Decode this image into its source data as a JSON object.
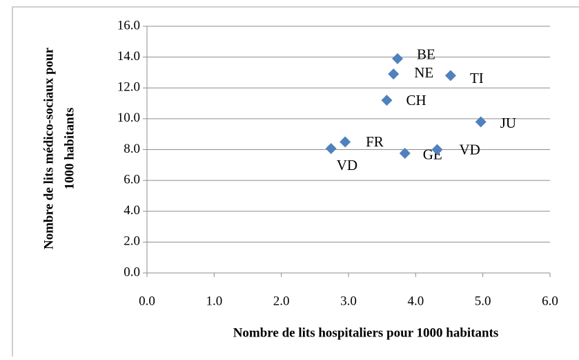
{
  "chart_data": {
    "type": "scatter",
    "xlabel": "Nombre de lits hospitaliers pour 1000 habitants",
    "ylabel": [
      "Nombre de lits médico-sociaux pour",
      "1000 habitants"
    ],
    "series": [
      {
        "color": "#4f81bd",
        "labels": [
          "BE",
          "NE",
          "TI",
          "CH",
          "JU",
          "FR",
          "VD",
          "GE",
          "VD"
        ],
        "x": [
          3.73,
          3.67,
          4.52,
          3.57,
          4.97,
          2.95,
          2.74,
          3.84,
          4.32
        ],
        "values": [
          13.9,
          12.9,
          12.8,
          11.2,
          9.8,
          8.5,
          8.07,
          7.76,
          8.0
        ]
      }
    ],
    "xlim": [
      0,
      6
    ],
    "ylim": [
      0,
      16
    ],
    "xticks": [
      {
        "value": 0,
        "label": "0.0"
      },
      {
        "value": 1,
        "label": "1.0"
      },
      {
        "value": 2,
        "label": "2.0"
      },
      {
        "value": 3,
        "label": "3.0"
      },
      {
        "value": 4,
        "label": "4.0"
      },
      {
        "value": 5,
        "label": "5.0"
      },
      {
        "value": 6,
        "label": "6.0"
      }
    ],
    "yticks": [
      {
        "value": 0,
        "label": "0.0"
      },
      {
        "value": 2,
        "label": "2.0"
      },
      {
        "value": 4,
        "label": "4.0"
      },
      {
        "value": 6,
        "label": "6.0"
      },
      {
        "value": 8,
        "label": "8.0"
      },
      {
        "value": 10,
        "label": "10.0"
      },
      {
        "value": 12,
        "label": "12.0"
      },
      {
        "value": 14,
        "label": "14.0"
      },
      {
        "value": 16,
        "label": "16.0"
      }
    ],
    "grid": true
  }
}
